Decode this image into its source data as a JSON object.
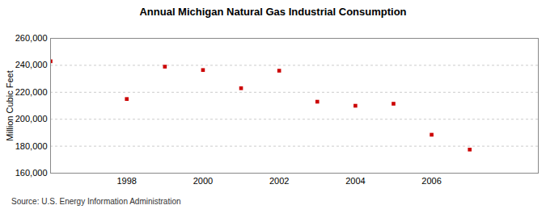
{
  "chart_data": {
    "type": "scatter",
    "title": "Annual Michigan Natural Gas Industrial Consumption",
    "y_label": "Million Cubic Feet",
    "source": "Source: U.S. Energy Information Administration",
    "x": [
      1996,
      1998,
      1999,
      2000,
      2001,
      2002,
      2003,
      2004,
      2005,
      2006,
      2007
    ],
    "values": [
      243000,
      215000,
      239000,
      236500,
      223000,
      236000,
      213000,
      210000,
      211500,
      188500,
      177500
    ],
    "color": "#cc0000",
    "marker": "square",
    "xlim": [
      1996,
      2008.8
    ],
    "xticks": [
      1998,
      2000,
      2002,
      2004,
      2006
    ],
    "ylim": [
      160000,
      260000
    ],
    "yticks": [
      {
        "value": 160000,
        "label": "160,000"
      },
      {
        "value": 180000,
        "label": "180,000"
      },
      {
        "value": 200000,
        "label": "200,000"
      },
      {
        "value": 220000,
        "label": "220,000"
      },
      {
        "value": 240000,
        "label": "240,000"
      },
      {
        "value": 260000,
        "label": "260,000"
      }
    ],
    "grid": true
  }
}
